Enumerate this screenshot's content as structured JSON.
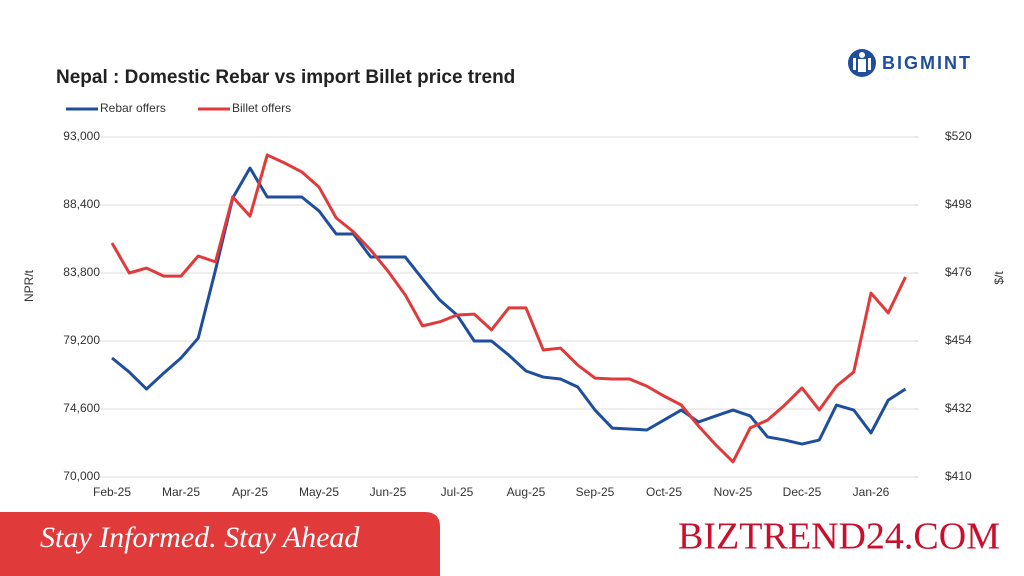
{
  "logo": "BIGMINT",
  "chart_data": {
    "type": "line",
    "title": "Nepal : Domestic Rebar vs import Billet price trend",
    "ylabel": "NPR/t",
    "y2label": "$/t",
    "categories": [
      "Feb-25",
      null,
      null,
      null,
      "Mar-25",
      null,
      null,
      null,
      "Apr-25",
      null,
      null,
      null,
      "May-25",
      null,
      null,
      null,
      "Jun-25",
      null,
      null,
      null,
      "Jul-25",
      null,
      null,
      null,
      "Aug-25",
      null,
      null,
      null,
      "Sep-25",
      null,
      null,
      null,
      "Oct-25",
      null,
      null,
      null,
      "Nov-25",
      null,
      null,
      null,
      "Dec-25",
      null,
      null,
      null,
      "Jan-26",
      null,
      null
    ],
    "series": [
      {
        "name": "Rebar offers",
        "color": "#1f4e9c",
        "axis": "y",
        "values": [
          78050,
          77100,
          75950,
          77030,
          78050,
          79400,
          84000,
          88870,
          90900,
          88940,
          88940,
          88940,
          88000,
          86440,
          86440,
          84880,
          84880,
          84880,
          83400,
          81970,
          80960,
          79200,
          79200,
          78250,
          77170,
          76760,
          76630,
          76090,
          74530,
          73310,
          73250,
          73180,
          73850,
          74530,
          73720,
          74130,
          74530,
          74130,
          72710,
          72500,
          72230,
          72500,
          74870,
          74530,
          72980,
          75200,
          75950
        ]
      },
      {
        "name": "Billet offers",
        "color": "#e03a3a",
        "axis": "y2",
        "values": [
          485.7,
          476.0,
          477.6,
          475.0,
          475.0,
          481.5,
          479.6,
          500.6,
          494.4,
          514.2,
          511.6,
          508.7,
          503.8,
          493.8,
          489.3,
          483.4,
          476.6,
          468.9,
          458.9,
          460.2,
          462.4,
          462.7,
          457.6,
          464.7,
          464.7,
          451.1,
          451.7,
          446.2,
          442.0,
          441.7,
          441.7,
          439.4,
          436.2,
          433.3,
          426.5,
          420.4,
          414.9,
          425.9,
          428.4,
          433.3,
          438.8,
          431.7,
          439.4,
          444.0,
          469.5,
          463.1,
          474.7
        ]
      }
    ],
    "ylim": [
      70000,
      93000
    ],
    "yticks": [
      {
        "value": 70000,
        "label": "70,000"
      },
      {
        "value": 74600,
        "label": "74,600"
      },
      {
        "value": 79200,
        "label": "79,200"
      },
      {
        "value": 83800,
        "label": "83,800"
      },
      {
        "value": 88400,
        "label": "88,400"
      },
      {
        "value": 93000,
        "label": "93,000"
      }
    ],
    "y2lim": [
      410,
      520
    ],
    "y2ticks": [
      {
        "value": 410,
        "label": "$410"
      },
      {
        "value": 432,
        "label": "$432"
      },
      {
        "value": 454,
        "label": "$454"
      },
      {
        "value": 476,
        "label": "$476"
      },
      {
        "value": 498,
        "label": "$498"
      },
      {
        "value": 520,
        "label": "$520"
      }
    ],
    "grid": true,
    "legend": "top-left"
  },
  "footer": {
    "tagline": "Stay Informed. Stay Ahead",
    "site": "BIZTREND24.COM"
  }
}
